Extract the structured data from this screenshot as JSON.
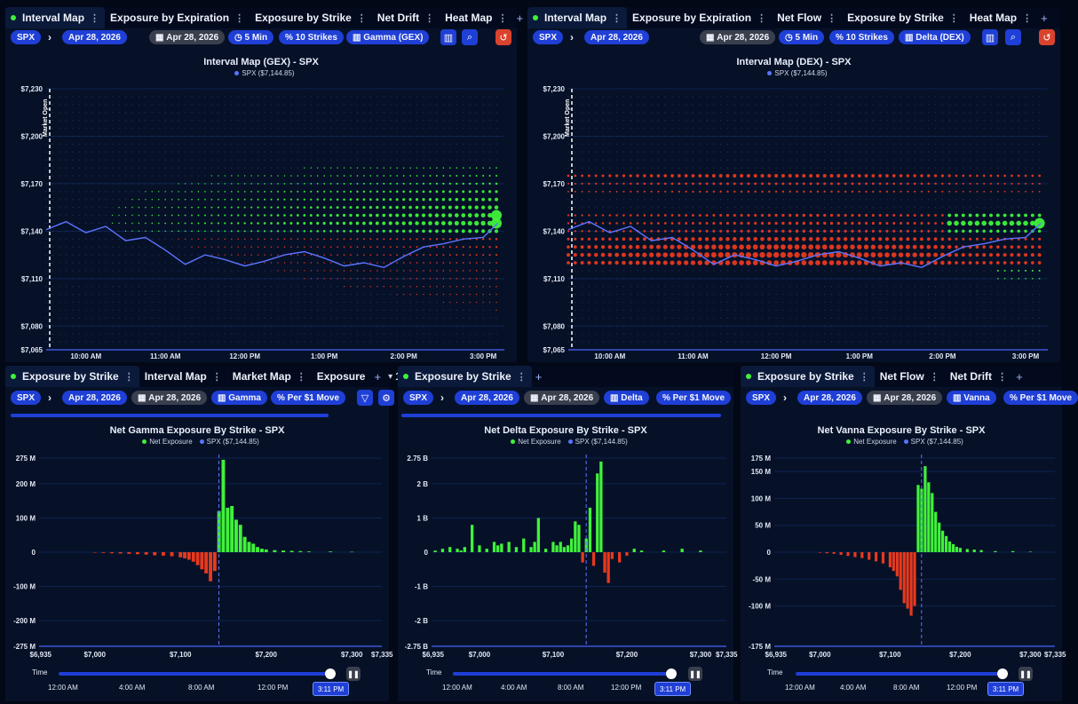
{
  "colors": {
    "positive": "#3ff23a",
    "negative": "#e8391d",
    "price": "#5b74ff",
    "accent": "#1f3fd6"
  },
  "panels": [
    {
      "tabs": [
        {
          "label": "Interval Map",
          "active": true
        },
        {
          "label": "Exposure by Expiration",
          "active": false
        },
        {
          "label": "Exposure by Strike",
          "active": false
        },
        {
          "label": "Net Drift",
          "active": false
        },
        {
          "label": "Heat Map",
          "active": false
        }
      ],
      "symbol": "SPX",
      "date": "Apr 28, 2026",
      "date2": "Apr 28, 2026",
      "interval": "5 Min",
      "strikes": "10 Strikes",
      "metric": "Gamma (GEX)",
      "chart_title": "Interval Map (GEX) - SPX",
      "legend_price": "SPX ($7,144.85)",
      "market_open": "Market Open",
      "y_ticks": [
        "$7,230",
        "$7,200",
        "$7,170",
        "$7,140",
        "$7,110",
        "$7,080",
        "$7,065"
      ],
      "x_ticks": [
        "10:00 AM",
        "11:00 AM",
        "12:00 PM",
        "1:00 PM",
        "2:00 PM",
        "3:00 PM"
      ]
    },
    {
      "tabs": [
        {
          "label": "Interval Map",
          "active": true
        },
        {
          "label": "Exposure by Expiration",
          "active": false
        },
        {
          "label": "Net Flow",
          "active": false
        },
        {
          "label": "Exposure by Strike",
          "active": false
        },
        {
          "label": "Heat Map",
          "active": false
        }
      ],
      "symbol": "SPX",
      "date": "Apr 28, 2026",
      "date2": "Apr 28, 2026",
      "interval": "5 Min",
      "strikes": "10 Strikes",
      "metric": "Delta (DEX)",
      "chart_title": "Interval Map (DEX) - SPX",
      "legend_price": "SPX ($7,144.85)",
      "market_open": "Market Open",
      "y_ticks": [
        "$7,230",
        "$7,200",
        "$7,170",
        "$7,140",
        "$7,110",
        "$7,080",
        "$7,065"
      ],
      "x_ticks": [
        "10:00 AM",
        "11:00 AM",
        "12:00 PM",
        "1:00 PM",
        "2:00 PM",
        "3:00 PM"
      ]
    },
    {
      "tabs": [
        {
          "label": "Exposure by Strike",
          "active": true
        },
        {
          "label": "Interval Map",
          "active": false
        },
        {
          "label": "Market Map",
          "active": false
        },
        {
          "label": "Exposure",
          "active": false
        }
      ],
      "tab_extra": "1",
      "symbol": "SPX",
      "date": "Apr 28, 2026",
      "date2": "Apr 28, 2026",
      "metric": "Gamma",
      "per_move": "Per $1 Move",
      "chart_title": "Net Gamma Exposure By Strike - SPX",
      "legend_net": "Net Exposure",
      "legend_price": "SPX ($7,144.85)",
      "y_ticks": [
        "275 M",
        "200 M",
        "100 M",
        "0",
        "-100 M",
        "-200 M",
        "-275 M"
      ],
      "x_ticks": [
        "$6,935",
        "$7,000",
        "$7,100",
        "$7,200",
        "$7,300",
        "$7,335"
      ],
      "time_label": "Time",
      "time_ticks": [
        "12:00 AM",
        "4:00 AM",
        "8:00 AM",
        "12:00 PM"
      ],
      "time_now": "3:11 PM"
    },
    {
      "tabs": [
        {
          "label": "Exposure by Strike",
          "active": true
        }
      ],
      "symbol": "SPX",
      "date": "Apr 28, 2026",
      "date2": "Apr 28, 2026",
      "metric": "Delta",
      "per_move": "Per $1 Move",
      "chart_title": "Net Delta Exposure By Strike - SPX",
      "legend_net": "Net Exposure",
      "legend_price": "SPX ($7,144.85)",
      "y_ticks": [
        "2.75 B",
        "2 B",
        "1 B",
        "0",
        "-1 B",
        "-2 B",
        "-2.75 B"
      ],
      "x_ticks": [
        "$6,935",
        "$7,000",
        "$7,100",
        "$7,200",
        "$7,300",
        "$7,335"
      ],
      "time_label": "Time",
      "time_ticks": [
        "12:00 AM",
        "4:00 AM",
        "8:00 AM",
        "12:00 PM"
      ],
      "time_now": "3:11 PM"
    },
    {
      "tabs": [
        {
          "label": "Exposure by Strike",
          "active": true
        },
        {
          "label": "Net Flow",
          "active": false
        },
        {
          "label": "Net Drift",
          "active": false
        }
      ],
      "symbol": "SPX",
      "date": "Apr 28, 2026",
      "date2": "Apr 28, 2026",
      "metric": "Vanna",
      "per_move": "Per $1 Move",
      "chart_title": "Net Vanna Exposure By Strike - SPX",
      "legend_net": "Net Exposure",
      "legend_price": "SPX ($7,144.85)",
      "y_ticks": [
        "175 M",
        "150 M",
        "100 M",
        "50 M",
        "0",
        "-50 M",
        "-100 M",
        "-175 M"
      ],
      "x_ticks": [
        "$6,935",
        "$7,000",
        "$7,100",
        "$7,200",
        "$7,300",
        "$7,335"
      ],
      "time_label": "Time",
      "time_ticks": [
        "12:00 AM",
        "4:00 AM",
        "8:00 AM",
        "12:00 PM"
      ],
      "time_now": "3:11 PM"
    }
  ],
  "chart_data": [
    {
      "type": "scatter",
      "title": "Interval Map (GEX) - SPX",
      "x_range": [
        "9:30 AM",
        "3:11 PM"
      ],
      "ylim": [
        7065,
        7230
      ],
      "strikes": [
        7225,
        7220,
        7215,
        7210,
        7205,
        7200,
        7195,
        7190,
        7185,
        7180,
        7175,
        7170,
        7165,
        7160,
        7155,
        7150,
        7145,
        7140,
        7135,
        7130,
        7125,
        7120,
        7115,
        7110,
        7105,
        7100,
        7095,
        7090,
        7085,
        7080,
        7075,
        7070
      ],
      "latest_exposure_by_strike": [
        0,
        0,
        0,
        0,
        0,
        0,
        0,
        0,
        0,
        0.1,
        0.2,
        0.3,
        0.45,
        0.6,
        0.75,
        0.9,
        1.0,
        0.7,
        -0.3,
        -0.25,
        -0.2,
        -0.15,
        -0.12,
        -0.1,
        -0.08,
        -0.06,
        -0.05,
        -0.04,
        -0.03,
        -0.02,
        0,
        0
      ],
      "series": [
        {
          "name": "SPX ($7,144.85)",
          "x": [
            "9:30",
            "9:45",
            "10:00",
            "10:15",
            "10:30",
            "10:45",
            "11:00",
            "11:15",
            "11:30",
            "11:45",
            "12:00",
            "12:15",
            "12:30",
            "12:45",
            "13:00",
            "13:15",
            "13:30",
            "13:45",
            "14:00",
            "14:15",
            "14:30",
            "14:45",
            "15:00",
            "15:11"
          ],
          "y": [
            7141,
            7146,
            7139,
            7143,
            7134,
            7136,
            7128,
            7119,
            7125,
            7122,
            7118,
            7121,
            7125,
            7127,
            7123,
            7118,
            7120,
            7117,
            7124,
            7130,
            7132,
            7135,
            7136,
            7145
          ]
        }
      ]
    },
    {
      "type": "scatter",
      "title": "Interval Map (DEX) - SPX",
      "x_range": [
        "9:30 AM",
        "3:11 PM"
      ],
      "ylim": [
        7065,
        7230
      ],
      "strikes": [
        7225,
        7220,
        7215,
        7210,
        7205,
        7200,
        7195,
        7190,
        7185,
        7180,
        7175,
        7170,
        7165,
        7160,
        7155,
        7150,
        7145,
        7140,
        7135,
        7130,
        7125,
        7120,
        7115,
        7110,
        7105,
        7100,
        7095,
        7090,
        7085,
        7080,
        7075,
        7070
      ],
      "latest_exposure_by_strike": [
        0,
        0,
        0,
        0,
        0,
        0,
        0,
        0,
        0,
        0,
        -0.5,
        -0.3,
        -0.2,
        0,
        0,
        0.6,
        1.0,
        0.5,
        -0.6,
        -0.8,
        -0.9,
        -0.8,
        0.2,
        0.1,
        0,
        0,
        0,
        0,
        0,
        0,
        0,
        0
      ],
      "series": [
        {
          "name": "SPX ($7,144.85)",
          "x": [
            "9:30",
            "9:45",
            "10:00",
            "10:15",
            "10:30",
            "10:45",
            "11:00",
            "11:15",
            "11:30",
            "11:45",
            "12:00",
            "12:15",
            "12:30",
            "12:45",
            "13:00",
            "13:15",
            "13:30",
            "13:45",
            "14:00",
            "14:15",
            "14:30",
            "14:45",
            "15:00",
            "15:11"
          ],
          "y": [
            7141,
            7146,
            7139,
            7143,
            7134,
            7136,
            7128,
            7119,
            7125,
            7122,
            7118,
            7121,
            7125,
            7127,
            7123,
            7118,
            7120,
            7117,
            7124,
            7130,
            7132,
            7135,
            7136,
            7145
          ]
        }
      ]
    },
    {
      "type": "bar",
      "title": "Net Gamma Exposure By Strike - SPX",
      "xlim": [
        6935,
        7335
      ],
      "ylim": [
        -275,
        275
      ],
      "unit": "M",
      "spot": 7144.85,
      "strikes": [
        7000,
        7010,
        7020,
        7030,
        7040,
        7050,
        7060,
        7070,
        7080,
        7090,
        7100,
        7105,
        7110,
        7115,
        7120,
        7125,
        7130,
        7135,
        7140,
        7145,
        7150,
        7155,
        7160,
        7165,
        7170,
        7175,
        7180,
        7185,
        7190,
        7195,
        7200,
        7210,
        7220,
        7230,
        7240,
        7250,
        7275,
        7300
      ],
      "values": [
        -1,
        -2,
        -3,
        -4,
        -5,
        -6,
        -7,
        -9,
        -10,
        -12,
        -15,
        -18,
        -22,
        -28,
        -38,
        -50,
        -62,
        -85,
        -55,
        120,
        270,
        130,
        135,
        95,
        80,
        45,
        30,
        25,
        15,
        10,
        8,
        6,
        5,
        4,
        3,
        2,
        2,
        1
      ]
    },
    {
      "type": "bar",
      "title": "Net Delta Exposure By Strike - SPX",
      "xlim": [
        6935,
        7335
      ],
      "ylim": [
        -2.75,
        2.75
      ],
      "unit": "B",
      "spot": 7144.85,
      "strikes": [
        6940,
        6950,
        6960,
        6970,
        6975,
        6980,
        6990,
        7000,
        7010,
        7020,
        7025,
        7030,
        7040,
        7050,
        7060,
        7070,
        7075,
        7080,
        7090,
        7100,
        7105,
        7110,
        7115,
        7120,
        7125,
        7130,
        7135,
        7140,
        7145,
        7150,
        7155,
        7160,
        7165,
        7170,
        7175,
        7180,
        7190,
        7200,
        7210,
        7220,
        7250,
        7275,
        7300
      ],
      "values": [
        0.05,
        0.1,
        0.15,
        0.1,
        0.05,
        0.15,
        0.8,
        0.2,
        0.1,
        0.3,
        0.2,
        0.25,
        0.3,
        0.15,
        0.4,
        0.15,
        0.3,
        1.0,
        0.1,
        0.3,
        0.2,
        0.3,
        0.15,
        0.2,
        0.4,
        0.9,
        0.8,
        -0.3,
        0.4,
        1.3,
        -0.4,
        2.3,
        2.65,
        -0.6,
        -0.9,
        -0.2,
        -0.3,
        -0.1,
        0.1,
        0.05,
        0.05,
        0.1,
        0.05
      ]
    },
    {
      "type": "bar",
      "title": "Net Vanna Exposure By Strike - SPX",
      "xlim": [
        6935,
        7335
      ],
      "ylim": [
        -175,
        175
      ],
      "unit": "M",
      "spot": 7144.85,
      "strikes": [
        7000,
        7010,
        7020,
        7030,
        7040,
        7050,
        7060,
        7070,
        7080,
        7090,
        7100,
        7105,
        7110,
        7115,
        7120,
        7125,
        7130,
        7135,
        7140,
        7145,
        7150,
        7155,
        7160,
        7165,
        7170,
        7175,
        7180,
        7185,
        7190,
        7195,
        7200,
        7210,
        7220,
        7230,
        7250,
        7275,
        7300
      ],
      "values": [
        -1,
        -2,
        -3,
        -5,
        -7,
        -9,
        -11,
        -14,
        -17,
        -21,
        -28,
        -35,
        -45,
        -70,
        -95,
        -105,
        -118,
        -100,
        125,
        118,
        160,
        130,
        110,
        75,
        55,
        40,
        30,
        20,
        15,
        10,
        8,
        6,
        5,
        4,
        2,
        2,
        1
      ]
    }
  ]
}
